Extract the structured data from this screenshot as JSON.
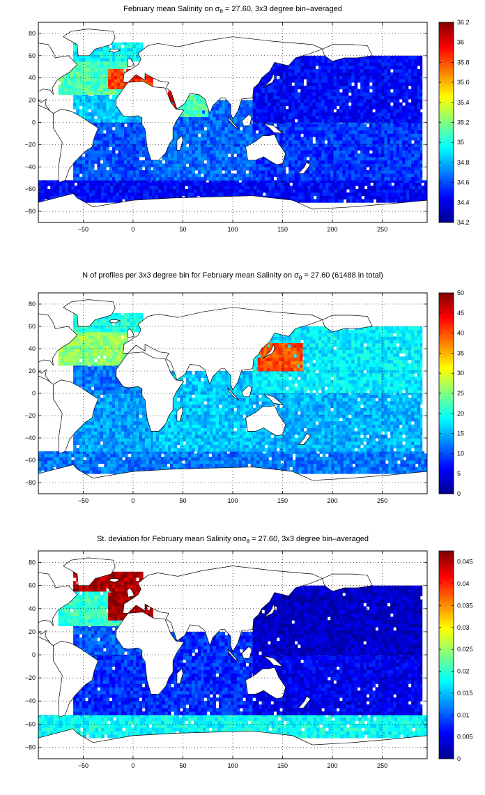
{
  "colors": {
    "land": "#ffffff",
    "ocean_nodata": "#ffffff",
    "grid": "#000000",
    "jet": [
      "#00008f",
      "#0000ff",
      "#0080ff",
      "#00ffff",
      "#80ff80",
      "#ffff00",
      "#ff8000",
      "#ff0000",
      "#800000"
    ]
  },
  "chart_data": [
    {
      "type": "heatmap",
      "name": "mean-salinity",
      "title_prefix": "February mean Salinity on ",
      "title_sigma": "σ",
      "title_sub": "θ",
      "title_suffix": " = 27.60, 3x3 degree bin–averaged",
      "xlim": [
        -95,
        295
      ],
      "ylim": [
        -90,
        90
      ],
      "x_ticks": [
        -50,
        0,
        50,
        100,
        150,
        200,
        250
      ],
      "y_ticks": [
        80,
        60,
        40,
        20,
        0,
        -20,
        -40,
        -60,
        -80
      ],
      "x_tick_labels": [
        "−50",
        "0",
        "50",
        "100",
        "150",
        "200",
        "250"
      ],
      "y_tick_labels": [
        "80",
        "60",
        "40",
        "20",
        "0",
        "−20",
        "−40",
        "−60",
        "−80"
      ],
      "grid": true,
      "colorbar": {
        "min": 34.2,
        "max": 36.2,
        "ticks": [
          34.2,
          34.4,
          34.6,
          34.8,
          35,
          35.2,
          35.4,
          35.6,
          35.8,
          36,
          36.2
        ],
        "tick_labels": [
          "34.2",
          "34.4",
          "34.6",
          "34.8",
          "35",
          "35.2",
          "35.4",
          "35.6",
          "35.8",
          "36",
          "36.2"
        ]
      },
      "regions": [
        {
          "name": "southern-ocean",
          "lon": [
            -95,
            295
          ],
          "lat": [
            -72,
            -52
          ],
          "value": 34.45
        },
        {
          "name": "south-atlantic",
          "lon": [
            -60,
            20
          ],
          "lat": [
            -52,
            0
          ],
          "value": 34.6
        },
        {
          "name": "indian-ocean",
          "lon": [
            20,
            120
          ],
          "lat": [
            -52,
            20
          ],
          "value": 34.65
        },
        {
          "name": "arabian-sea",
          "lon": [
            45,
            75
          ],
          "lat": [
            5,
            25
          ],
          "value": 35.1
        },
        {
          "name": "red-sea",
          "lon": [
            35,
            45
          ],
          "lat": [
            12,
            28
          ],
          "value": 36.0
        },
        {
          "name": "north-pacific",
          "lon": [
            120,
            290
          ],
          "lat": [
            0,
            60
          ],
          "value": 34.45
        },
        {
          "name": "south-pacific",
          "lon": [
            120,
            290
          ],
          "lat": [
            -52,
            0
          ],
          "value": 34.55
        },
        {
          "name": "tropical-atlantic",
          "lon": [
            -60,
            15
          ],
          "lat": [
            0,
            25
          ],
          "value": 34.85
        },
        {
          "name": "north-atlantic",
          "lon": [
            -75,
            -5
          ],
          "lat": [
            25,
            55
          ],
          "value": 35.1
        },
        {
          "name": "mediterranean-outflow",
          "lon": [
            -25,
            20
          ],
          "lat": [
            30,
            48
          ],
          "value": 35.85
        },
        {
          "name": "labrador-nordic",
          "lon": [
            -60,
            10
          ],
          "lat": [
            55,
            72
          ],
          "value": 34.95
        }
      ]
    },
    {
      "type": "heatmap",
      "name": "profile-count",
      "title_prefix": "N of profiles per 3x3 degree bin for February mean Salinity on ",
      "title_sigma": "σ",
      "title_sub": "θ",
      "title_suffix": " = 27.60 (61488 in total)",
      "xlim": [
        -95,
        295
      ],
      "ylim": [
        -90,
        90
      ],
      "x_ticks": [
        -50,
        0,
        50,
        100,
        150,
        200,
        250
      ],
      "y_ticks": [
        80,
        60,
        40,
        20,
        0,
        -20,
        -40,
        -60,
        -80
      ],
      "x_tick_labels": [
        "−50",
        "0",
        "50",
        "100",
        "150",
        "200",
        "250"
      ],
      "y_tick_labels": [
        "80",
        "60",
        "40",
        "20",
        "0",
        "−20",
        "−40",
        "−60",
        "−80"
      ],
      "grid": true,
      "colorbar": {
        "min": 0,
        "max": 50,
        "ticks": [
          0,
          5,
          10,
          15,
          20,
          25,
          30,
          35,
          40,
          45,
          50
        ],
        "tick_labels": [
          "0",
          "5",
          "10",
          "15",
          "20",
          "25",
          "30",
          "35",
          "40",
          "45",
          "50"
        ]
      },
      "regions": [
        {
          "name": "southern-ocean",
          "lon": [
            -95,
            295
          ],
          "lat": [
            -72,
            -52
          ],
          "value": 12
        },
        {
          "name": "south-atlantic",
          "lon": [
            -60,
            20
          ],
          "lat": [
            -52,
            0
          ],
          "value": 14
        },
        {
          "name": "indian-ocean",
          "lon": [
            20,
            120
          ],
          "lat": [
            -52,
            20
          ],
          "value": 16
        },
        {
          "name": "north-pacific",
          "lon": [
            120,
            290
          ],
          "lat": [
            0,
            60
          ],
          "value": 18
        },
        {
          "name": "kuroshio",
          "lon": [
            125,
            170
          ],
          "lat": [
            20,
            45
          ],
          "value": 40
        },
        {
          "name": "south-pacific",
          "lon": [
            120,
            290
          ],
          "lat": [
            -52,
            0
          ],
          "value": 15
        },
        {
          "name": "tropical-atlantic",
          "lon": [
            -60,
            15
          ],
          "lat": [
            0,
            25
          ],
          "value": 12
        },
        {
          "name": "north-atlantic",
          "lon": [
            -75,
            -5
          ],
          "lat": [
            25,
            55
          ],
          "value": 26
        },
        {
          "name": "labrador-nordic",
          "lon": [
            -60,
            10
          ],
          "lat": [
            55,
            72
          ],
          "value": 20
        }
      ]
    },
    {
      "type": "heatmap",
      "name": "std-deviation",
      "title_prefix": "St. deviation for February mean Salinity on",
      "title_sigma": "σ",
      "title_sub": "θ",
      "title_suffix": " = 27.60, 3x3 degree bin–averaged",
      "xlim": [
        -95,
        295
      ],
      "ylim": [
        -90,
        90
      ],
      "x_ticks": [
        -50,
        0,
        50,
        100,
        150,
        200,
        250
      ],
      "y_ticks": [
        80,
        60,
        40,
        20,
        0,
        -20,
        -40,
        -60,
        -80
      ],
      "x_tick_labels": [
        "−50",
        "0",
        "50",
        "100",
        "150",
        "200",
        "250"
      ],
      "y_tick_labels": [
        "80",
        "60",
        "40",
        "20",
        "0",
        "−20",
        "−40",
        "−60",
        "−80"
      ],
      "grid": true,
      "colorbar": {
        "min": 0,
        "max": 0.0475,
        "ticks": [
          0,
          0.005,
          0.01,
          0.015,
          0.02,
          0.025,
          0.03,
          0.035,
          0.04,
          0.045
        ],
        "tick_labels": [
          "0",
          "0.005",
          "0.01",
          "0.015",
          "0.02",
          "0.025",
          "0.03",
          "0.035",
          "0.04",
          "0.045"
        ]
      },
      "regions": [
        {
          "name": "southern-ocean",
          "lon": [
            -95,
            295
          ],
          "lat": [
            -72,
            -52
          ],
          "value": 0.018
        },
        {
          "name": "south-atlantic",
          "lon": [
            -60,
            20
          ],
          "lat": [
            -52,
            0
          ],
          "value": 0.008
        },
        {
          "name": "indian-ocean",
          "lon": [
            20,
            120
          ],
          "lat": [
            -52,
            20
          ],
          "value": 0.008
        },
        {
          "name": "north-pacific",
          "lon": [
            120,
            290
          ],
          "lat": [
            0,
            60
          ],
          "value": 0.003
        },
        {
          "name": "south-pacific",
          "lon": [
            120,
            290
          ],
          "lat": [
            -52,
            0
          ],
          "value": 0.005
        },
        {
          "name": "tropical-atlantic",
          "lon": [
            -60,
            15
          ],
          "lat": [
            0,
            25
          ],
          "value": 0.01
        },
        {
          "name": "north-atlantic",
          "lon": [
            -75,
            -5
          ],
          "lat": [
            25,
            55
          ],
          "value": 0.02
        },
        {
          "name": "mediterranean-outflow",
          "lon": [
            -25,
            20
          ],
          "lat": [
            30,
            60
          ],
          "value": 0.046
        },
        {
          "name": "labrador-nordic",
          "lon": [
            -60,
            10
          ],
          "lat": [
            55,
            72
          ],
          "value": 0.045
        }
      ]
    }
  ]
}
